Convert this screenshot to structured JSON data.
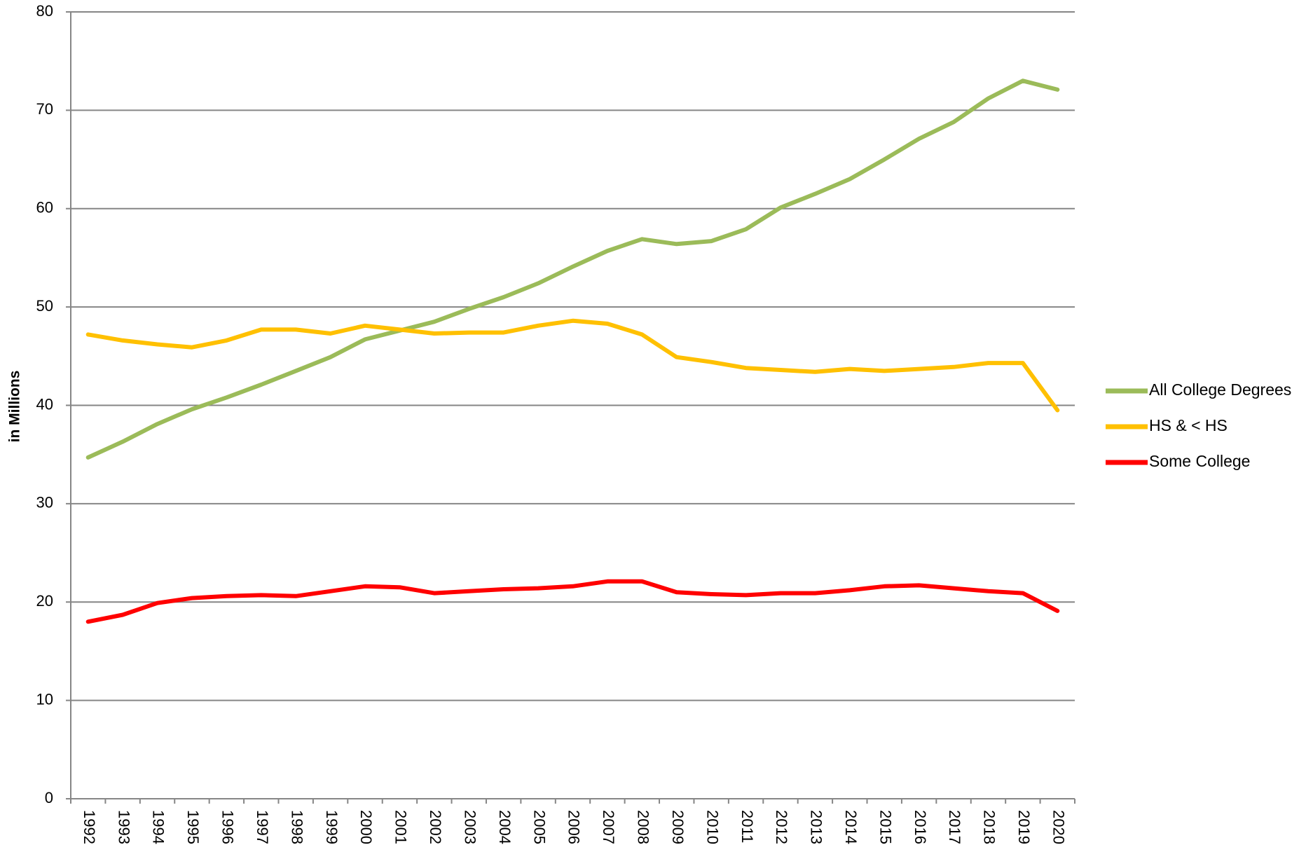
{
  "chart_data": {
    "type": "line",
    "ylabel": "in Millions",
    "categories": [
      "1992",
      "1993",
      "1994",
      "1995",
      "1996",
      "1997",
      "1998",
      "1999",
      "2000",
      "2001",
      "2002",
      "2003",
      "2004",
      "2005",
      "2006",
      "2007",
      "2008",
      "2009",
      "2010",
      "2011",
      "2012",
      "2013",
      "2014",
      "2015",
      "2016",
      "2017",
      "2018",
      "2019",
      "2020"
    ],
    "series": [
      {
        "name": "All College Degrees",
        "color": "#9bbb59",
        "values": [
          34.7,
          36.3,
          38.1,
          39.6,
          40.8,
          42.1,
          43.5,
          44.9,
          46.7,
          47.6,
          48.5,
          49.8,
          51.0,
          52.4,
          54.1,
          55.7,
          56.9,
          56.4,
          56.7,
          57.9,
          60.1,
          61.5,
          63.0,
          65.0,
          67.1,
          68.8,
          71.2,
          73.0,
          72.1
        ]
      },
      {
        "name": "HS & < HS",
        "color": "#ffc000",
        "values": [
          47.2,
          46.6,
          46.2,
          45.9,
          46.6,
          47.7,
          47.7,
          47.3,
          48.1,
          47.7,
          47.3,
          47.4,
          47.4,
          48.1,
          48.6,
          48.3,
          47.2,
          44.9,
          44.4,
          43.8,
          43.6,
          43.4,
          43.7,
          43.5,
          43.7,
          43.9,
          44.3,
          44.3,
          39.5
        ]
      },
      {
        "name": "Some College",
        "color": "#ff0000",
        "values": [
          18.0,
          18.7,
          19.9,
          20.4,
          20.6,
          20.7,
          20.6,
          21.1,
          21.6,
          21.5,
          20.9,
          21.1,
          21.3,
          21.4,
          21.6,
          22.1,
          22.1,
          21.0,
          20.8,
          20.7,
          20.9,
          20.9,
          21.2,
          21.6,
          21.7,
          21.4,
          21.1,
          20.9,
          19.1
        ]
      }
    ],
    "ylim": [
      0,
      80
    ],
    "yticks": [
      0,
      10,
      20,
      30,
      40,
      50,
      60,
      70,
      80
    ],
    "grid": true,
    "legend": "right"
  }
}
